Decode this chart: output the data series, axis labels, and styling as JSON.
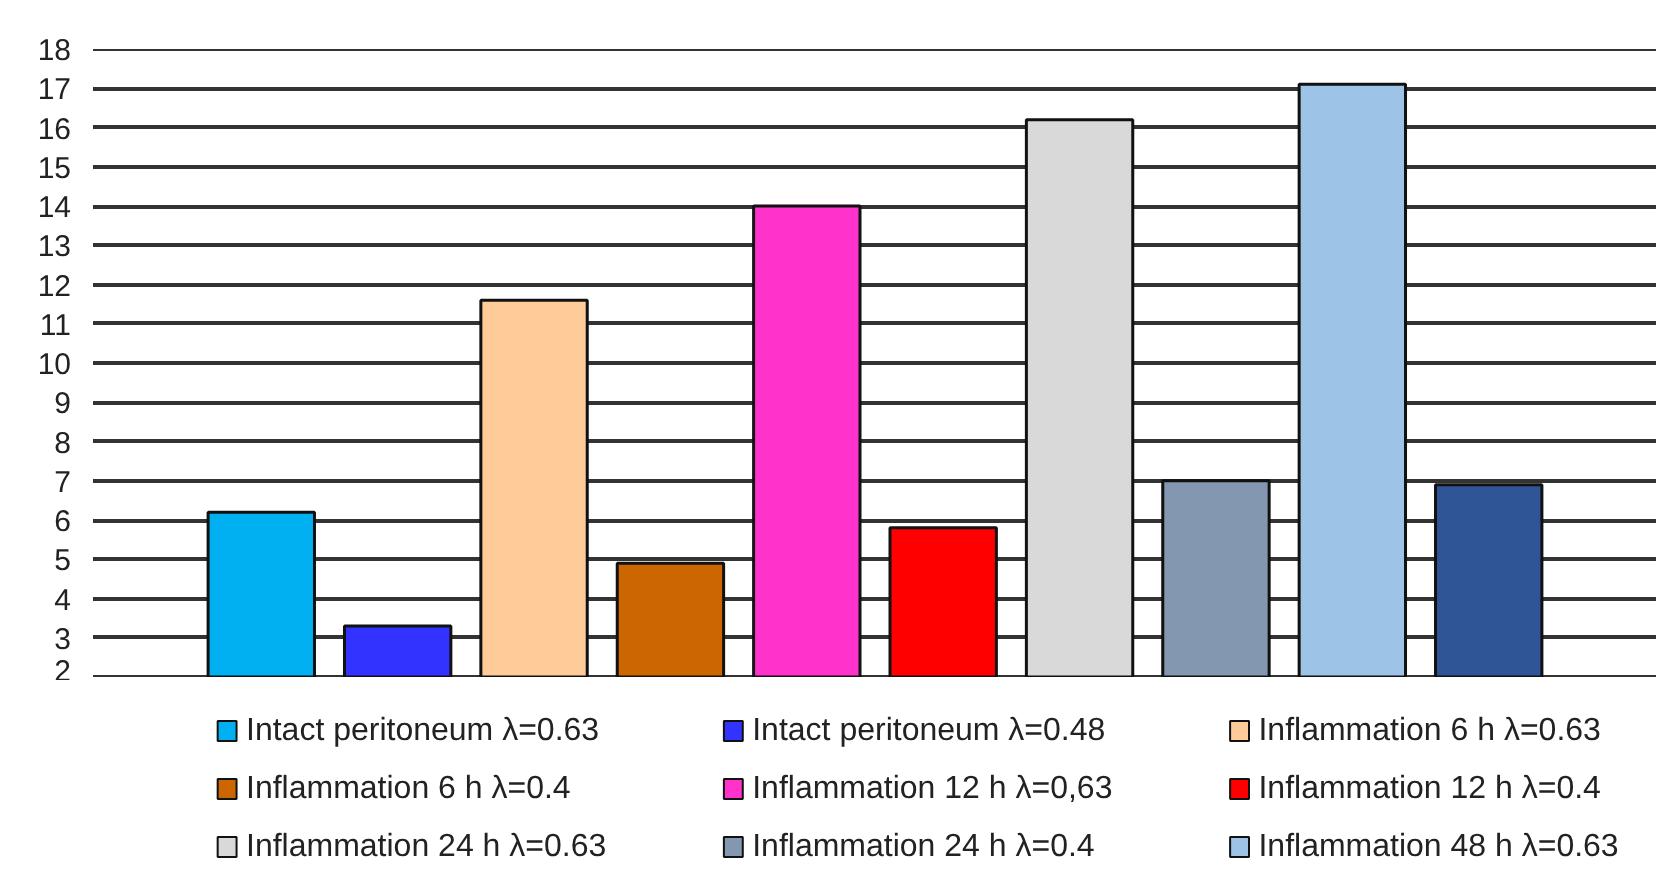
{
  "chart_data": {
    "type": "bar",
    "categories": [
      null
    ],
    "series": [
      {
        "name": "Intact peritoneum λ=0.63",
        "color": "#00b0f0",
        "values": [
          6.2
        ]
      },
      {
        "name": "Intact peritoneum λ=0.48",
        "color": "#3333ff",
        "values": [
          3.3
        ]
      },
      {
        "name": "Inflammation 6 h λ=0.63",
        "color": "#ffcc99",
        "values": [
          11.6
        ]
      },
      {
        "name": "Inflammation 6 h λ=0.4",
        "color": "#cc6600",
        "values": [
          4.9
        ]
      },
      {
        "name": "Inflammation 12 h λ=0,63",
        "color": "#ff33cc",
        "values": [
          14.0
        ]
      },
      {
        "name": "Inflammation 12 h λ=0.4",
        "color": "#ff0000",
        "values": [
          5.8
        ]
      },
      {
        "name": "Inflammation 24 h λ=0.63",
        "color": "#d9d9d9",
        "values": [
          16.2
        ]
      },
      {
        "name": "Inflammation 24 h λ=0.4",
        "color": "#8497b0",
        "values": [
          7.0
        ]
      },
      {
        "name": "Inflammation 48 h λ=0.63",
        "color": "#9dc3e6",
        "values": [
          17.1
        ]
      },
      {
        "color": "#2f5597",
        "values": [
          6.9
        ]
      }
    ],
    "ylim": [
      2,
      18
    ],
    "yticks": [
      2,
      3,
      4,
      5,
      6,
      7,
      8,
      9,
      10,
      11,
      12,
      13,
      14,
      15,
      16,
      17,
      18
    ],
    "grid": "y",
    "legend": "bottom",
    "tick_labels": "y"
  }
}
